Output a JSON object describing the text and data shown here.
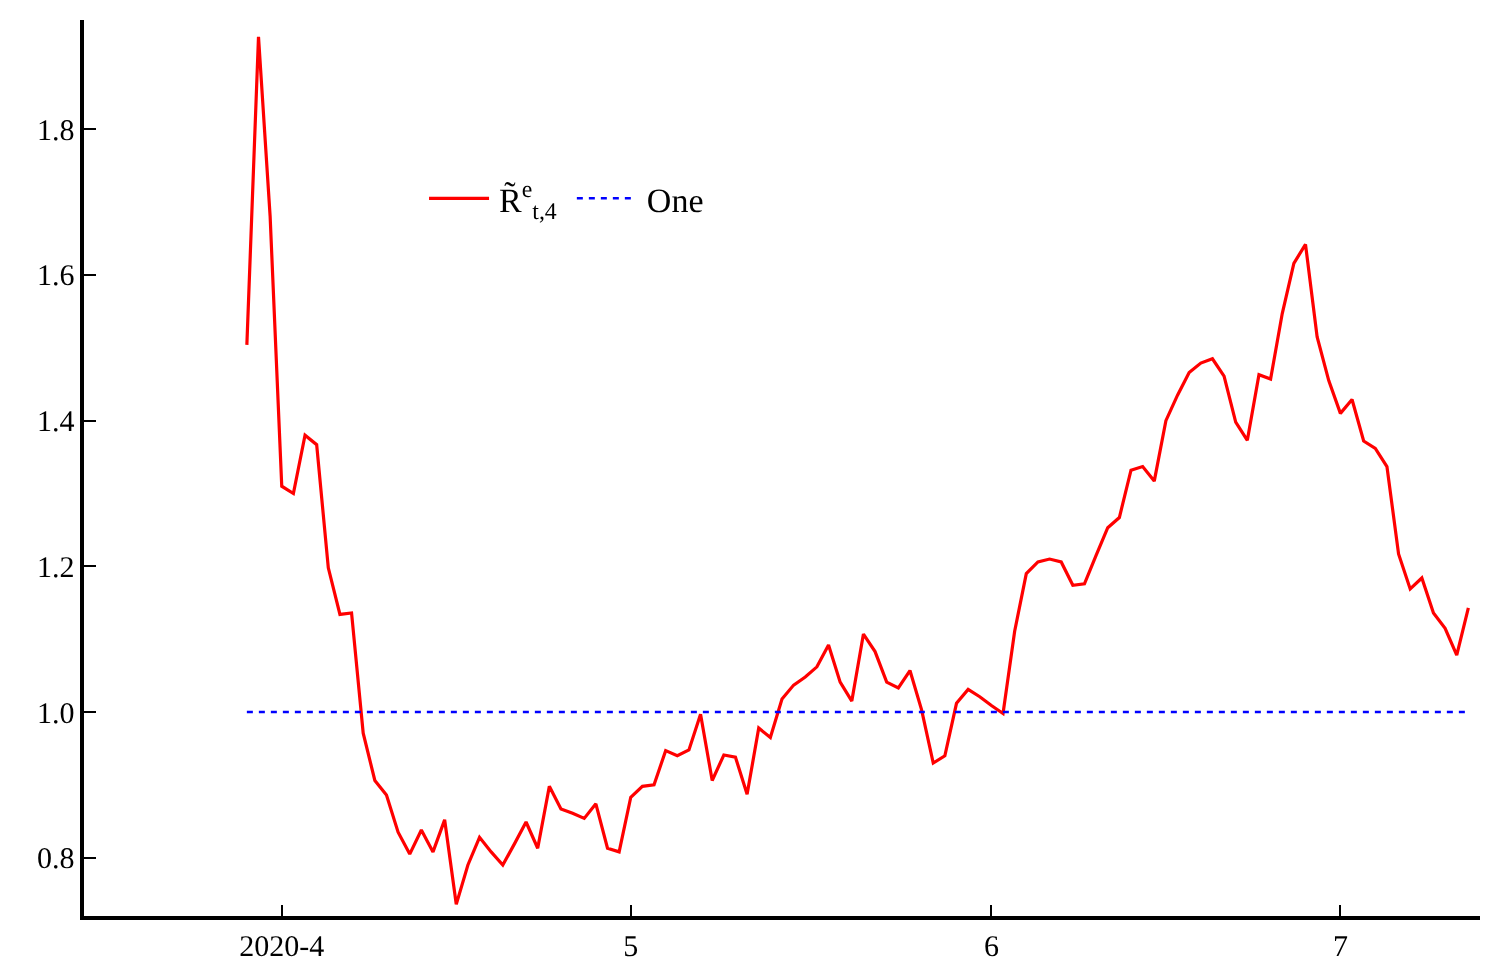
{
  "chart_data": {
    "type": "line",
    "legend": "top left",
    "marker": "none",
    "xlim": [
      "2020-03-15",
      "2020-07-13"
    ],
    "ylim": [
      0.72,
      1.95
    ],
    "xticks": [
      {
        "value": "2020-04-01",
        "label": "2020-4"
      },
      {
        "value": "2020-05-01",
        "label": "5"
      },
      {
        "value": "2020-06-01",
        "label": "6"
      },
      {
        "value": "2020-07-01",
        "label": "7"
      }
    ],
    "yticks": [
      0.8,
      {
        "value": 1,
        "label": "1.0"
      },
      1.2,
      1.4,
      1.6,
      1.8
    ],
    "series": [
      {
        "name": "R̃$^{e}$$_{t,4}$",
        "color": "#ff0000",
        "line_style": "solid",
        "x": [
          "2020-03-29",
          "2020-03-30",
          "2020-03-31",
          "2020-04-01",
          "2020-04-02",
          "2020-04-03",
          "2020-04-04",
          "2020-04-05",
          "2020-04-06",
          "2020-04-07",
          "2020-04-08",
          "2020-04-09",
          "2020-04-10",
          "2020-04-11",
          "2020-04-12",
          "2020-04-13",
          "2020-04-14",
          "2020-04-15",
          "2020-04-16",
          "2020-04-17",
          "2020-04-18",
          "2020-04-19",
          "2020-04-20",
          "2020-04-21",
          "2020-04-22",
          "2020-04-23",
          "2020-04-24",
          "2020-04-25",
          "2020-04-26",
          "2020-04-27",
          "2020-04-28",
          "2020-04-29",
          "2020-04-30",
          "2020-05-01",
          "2020-05-02",
          "2020-05-03",
          "2020-05-04",
          "2020-05-05",
          "2020-05-06",
          "2020-05-07",
          "2020-05-08",
          "2020-05-09",
          "2020-05-10",
          "2020-05-11",
          "2020-05-12",
          "2020-05-13",
          "2020-05-14",
          "2020-05-15",
          "2020-05-16",
          "2020-05-17",
          "2020-05-18",
          "2020-05-19",
          "2020-05-20",
          "2020-05-21",
          "2020-05-22",
          "2020-05-23",
          "2020-05-24",
          "2020-05-25",
          "2020-05-26",
          "2020-05-27",
          "2020-05-28",
          "2020-05-29",
          "2020-05-30",
          "2020-05-31",
          "2020-06-01",
          "2020-06-02",
          "2020-06-03",
          "2020-06-04",
          "2020-06-05",
          "2020-06-06",
          "2020-06-07",
          "2020-06-08",
          "2020-06-09",
          "2020-06-10",
          "2020-06-11",
          "2020-06-12",
          "2020-06-13",
          "2020-06-14",
          "2020-06-15",
          "2020-06-16",
          "2020-06-17",
          "2020-06-18",
          "2020-06-19",
          "2020-06-20",
          "2020-06-21",
          "2020-06-22",
          "2020-06-23",
          "2020-06-24",
          "2020-06-25",
          "2020-06-26",
          "2020-06-27",
          "2020-06-28",
          "2020-06-29",
          "2020-06-30",
          "2020-07-01",
          "2020-07-02",
          "2020-07-03",
          "2020-07-04",
          "2020-07-05",
          "2020-07-06",
          "2020-07-07",
          "2020-07-08",
          "2020-07-09",
          "2020-07-10",
          "2020-07-11",
          "2020-07-12"
        ],
        "values": [
          1.504,
          1.927,
          1.68,
          1.31,
          1.3,
          1.38,
          1.367,
          1.198,
          1.134,
          1.136,
          0.971,
          0.906,
          0.886,
          0.835,
          0.805,
          0.838,
          0.808,
          0.852,
          0.736,
          0.79,
          0.828,
          0.808,
          0.79,
          0.819,
          0.849,
          0.813,
          0.898,
          0.867,
          0.861,
          0.854,
          0.874,
          0.813,
          0.808,
          0.883,
          0.898,
          0.9,
          0.947,
          0.94,
          0.948,
          0.997,
          0.906,
          0.941,
          0.938,
          0.887,
          0.978,
          0.965,
          1.018,
          1.037,
          1.048,
          1.062,
          1.092,
          1.041,
          1.015,
          1.107,
          1.083,
          1.041,
          1.033,
          1.057,
          1.003,
          0.93,
          0.94,
          1.012,
          1.031,
          1.021,
          1.009,
          0.998,
          1.111,
          1.19,
          1.206,
          1.21,
          1.206,
          1.174,
          1.176,
          1.215,
          1.253,
          1.267,
          1.332,
          1.337,
          1.317,
          1.4,
          1.435,
          1.466,
          1.479,
          1.485,
          1.461,
          1.398,
          1.373,
          1.463,
          1.457,
          1.547,
          1.616,
          1.642,
          1.515,
          1.455,
          1.41,
          1.429,
          1.372,
          1.362,
          1.337,
          1.217,
          1.169,
          1.184,
          1.136,
          1.115,
          1.078,
          1.143
        ]
      },
      {
        "name": "One",
        "color": "#0000ff",
        "line_style": "dotted",
        "x": [
          "2020-03-29",
          "2020-07-12"
        ],
        "values": [
          1,
          1
        ]
      }
    ]
  }
}
